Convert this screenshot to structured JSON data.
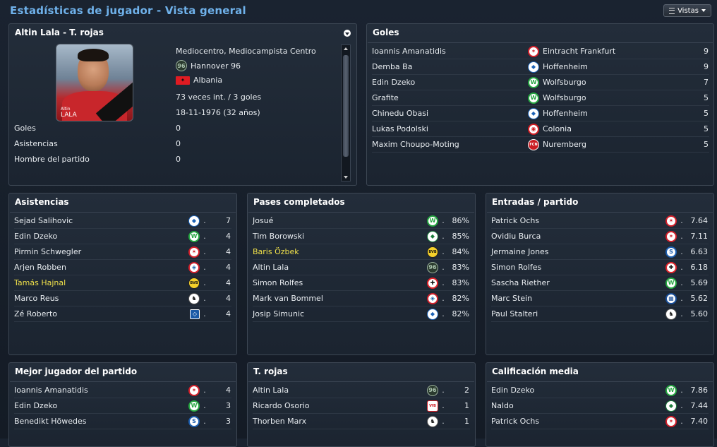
{
  "header": {
    "title": "Estadísticas de jugador - Vista general",
    "views_button": "Vistas"
  },
  "player_panel": {
    "title": "Altin Lala - T. rojas",
    "photo_caption_first": "Altin",
    "photo_caption_last": "LALA",
    "position": "Mediocentro, Mediocampista Centro",
    "club": "Hannover 96",
    "nation": "Albania",
    "caps": "73 veces int. / 3 goles",
    "birth": "18-11-1976 (32 años)",
    "stats": [
      {
        "label": "Goles",
        "value": "0"
      },
      {
        "label": "Asistencias",
        "value": "0"
      },
      {
        "label": "Hombre del partido",
        "value": "0"
      }
    ]
  },
  "goals_panel": {
    "title": "Goles",
    "rows": [
      {
        "player": "Ioannis Amanatidis",
        "club": "Eintracht Frankfurt",
        "club_icon": "frankfurt",
        "value": "9"
      },
      {
        "player": "Demba Ba",
        "club": "Hoffenheim",
        "club_icon": "hoffenheim",
        "value": "9"
      },
      {
        "player": "Edin Dzeko",
        "club": "Wolfsburgo",
        "club_icon": "wolfsburg",
        "value": "7"
      },
      {
        "player": "Grafite",
        "club": "Wolfsburgo",
        "club_icon": "wolfsburg",
        "value": "5"
      },
      {
        "player": "Chinedu Obasi",
        "club": "Hoffenheim",
        "club_icon": "hoffenheim",
        "value": "5"
      },
      {
        "player": "Lukas Podolski",
        "club": "Colonia",
        "club_icon": "koln",
        "value": "5"
      },
      {
        "player": "Maxim Choupo-Moting",
        "club": "Nuremberg",
        "club_icon": "nurnberg",
        "value": "5"
      }
    ]
  },
  "assists_panel": {
    "title": "Asistencias",
    "rows": [
      {
        "player": "Sejad Salihovic",
        "club_icon": "hoffenheim",
        "value": "7",
        "highlight": false
      },
      {
        "player": "Edin Dzeko",
        "club_icon": "wolfsburg",
        "value": "4",
        "highlight": false
      },
      {
        "player": "Pirmin Schwegler",
        "club_icon": "frankfurt",
        "value": "4",
        "highlight": false
      },
      {
        "player": "Arjen Robben",
        "club_icon": "bayern",
        "value": "4",
        "highlight": false
      },
      {
        "player": "Tamás Hajnal",
        "club_icon": "dortmund",
        "value": "4",
        "highlight": true
      },
      {
        "player": "Marco Reus",
        "club_icon": "gladbach",
        "value": "4",
        "highlight": false
      },
      {
        "player": "Zé Roberto",
        "club_icon": "hamburg",
        "value": "4",
        "highlight": false
      }
    ]
  },
  "passes_panel": {
    "title": "Pases completados",
    "rows": [
      {
        "player": "Josué",
        "club_icon": "wolfsburg",
        "value": "86%",
        "highlight": false
      },
      {
        "player": "Tim Borowski",
        "club_icon": "bremen",
        "value": "85%",
        "highlight": false
      },
      {
        "player": "Baris Özbek",
        "club_icon": "dortmund",
        "value": "84%",
        "highlight": true
      },
      {
        "player": "Altin Lala",
        "club_icon": "hannover",
        "value": "83%",
        "highlight": false
      },
      {
        "player": "Simon Rolfes",
        "club_icon": "leverkusen",
        "value": "83%",
        "highlight": false
      },
      {
        "player": "Mark van Bommel",
        "club_icon": "bayern",
        "value": "82%",
        "highlight": false
      },
      {
        "player": "Josip Simunic",
        "club_icon": "hoffenheim",
        "value": "82%",
        "highlight": false
      }
    ]
  },
  "tackles_panel": {
    "title": "Entradas / partido",
    "rows": [
      {
        "player": "Patrick Ochs",
        "club_icon": "frankfurt",
        "value": "7.64",
        "highlight": false
      },
      {
        "player": "Ovidiu Burca",
        "club_icon": "frankfurt",
        "value": "7.11",
        "highlight": false
      },
      {
        "player": "Jermaine Jones",
        "club_icon": "schalke",
        "value": "6.63",
        "highlight": false
      },
      {
        "player": "Simon Rolfes",
        "club_icon": "leverkusen",
        "value": "6.18",
        "highlight": false
      },
      {
        "player": "Sascha Riether",
        "club_icon": "wolfsburg",
        "value": "5.69",
        "highlight": false
      },
      {
        "player": "Marc Stein",
        "club_icon": "hertha",
        "value": "5.62",
        "highlight": false
      },
      {
        "player": "Paul Stalteri",
        "club_icon": "gladbach",
        "value": "5.60",
        "highlight": false
      }
    ]
  },
  "motm_panel": {
    "title": "Mejor jugador del partido",
    "rows": [
      {
        "player": "Ioannis Amanatidis",
        "club_icon": "frankfurt",
        "value": "4",
        "highlight": false
      },
      {
        "player": "Edin Dzeko",
        "club_icon": "wolfsburg",
        "value": "3",
        "highlight": false
      },
      {
        "player": "Benedikt Höwedes",
        "club_icon": "schalke",
        "value": "3",
        "highlight": false
      }
    ]
  },
  "reds_panel": {
    "title": "T. rojas",
    "rows": [
      {
        "player": "Altin Lala",
        "club_icon": "hannover",
        "value": "2",
        "highlight": false
      },
      {
        "player": "Ricardo Osorio",
        "club_icon": "stuttgart",
        "value": "1",
        "highlight": false
      },
      {
        "player": "Thorben Marx",
        "club_icon": "gladbach",
        "value": "1",
        "highlight": false
      }
    ]
  },
  "rating_panel": {
    "title": "Calificación media",
    "rows": [
      {
        "player": "Edin Dzeko",
        "club_icon": "wolfsburg",
        "value": "7.86",
        "highlight": false
      },
      {
        "player": "Naldo",
        "club_icon": "bremen",
        "value": "7.44",
        "highlight": false
      },
      {
        "player": "Patrick Ochs",
        "club_icon": "frankfurt",
        "value": "7.40",
        "highlight": false
      }
    ]
  },
  "colors": {
    "title_blue": "#6fb1ea",
    "highlight_yellow": "#f0e14a",
    "panel_bg": "#1f2834"
  }
}
